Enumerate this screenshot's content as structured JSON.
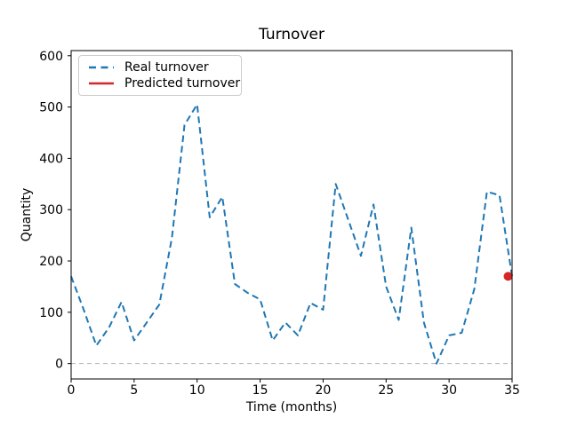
{
  "title": "Turnover",
  "colors": {
    "real": "#1f77b4",
    "predicted": "#d62728",
    "zero_line": "#b0b0b0",
    "spine": "#000000",
    "legend_border": "#cccccc",
    "background": "#ffffff"
  },
  "legend": {
    "position": "upper left",
    "items": [
      {
        "label": "Real turnover",
        "style": "dashed",
        "color": "#1f77b4"
      },
      {
        "label": "Predicted turnover",
        "style": "solid",
        "color": "#d62728"
      }
    ]
  },
  "chart_data": {
    "type": "line",
    "title": "Turnover",
    "xlabel": "Time (months)",
    "ylabel": "Quantity",
    "xlim": [
      0,
      35
    ],
    "ylim": [
      -30,
      610
    ],
    "xticks": [
      0,
      5,
      10,
      15,
      20,
      25,
      30,
      35
    ],
    "yticks": [
      0,
      100,
      200,
      300,
      400,
      500,
      600
    ],
    "grid": false,
    "legend_position": "upper left",
    "zero_line": {
      "y": 0,
      "style": "dashed",
      "color": "#b0b0b0"
    },
    "series": [
      {
        "name": "Real turnover",
        "kind": "line",
        "style": "dashed",
        "color": "#1f77b4",
        "x": [
          0,
          1,
          2,
          3,
          4,
          5,
          6,
          7,
          8,
          9,
          10,
          11,
          12,
          13,
          14,
          15,
          16,
          17,
          18,
          19,
          20,
          21,
          22,
          23,
          24,
          25,
          26,
          27,
          28,
          29,
          30,
          31,
          32,
          33,
          34,
          35
        ],
        "y": [
          170,
          105,
          35,
          70,
          120,
          45,
          80,
          115,
          245,
          465,
          505,
          285,
          325,
          155,
          138,
          125,
          45,
          80,
          55,
          118,
          105,
          350,
          280,
          210,
          310,
          150,
          85,
          265,
          80,
          0,
          55,
          60,
          145,
          335,
          328,
          170
        ]
      },
      {
        "name": "Predicted turnover",
        "kind": "point",
        "style": "solid",
        "color": "#d62728",
        "x": [
          35
        ],
        "y": [
          170
        ]
      }
    ]
  }
}
